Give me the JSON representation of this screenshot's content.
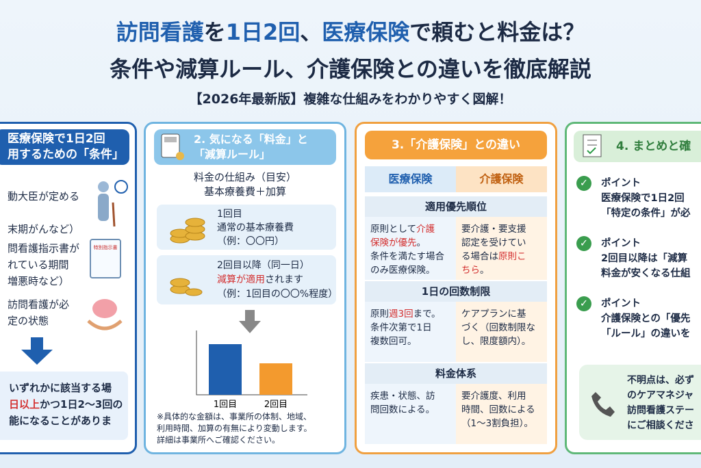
{
  "header": {
    "title_line1": [
      {
        "text": "訪問看護",
        "color": "#1f5fae"
      },
      "を",
      {
        "text": "1日2回",
        "color": "#1f5fae"
      },
      "、",
      {
        "text": "医療保険",
        "color": "#1f5fae"
      },
      "で頼むと料金は？"
    ],
    "title_line2": "条件や減算ルール、介護保険との違いを徹底解説",
    "subtitle": "【2026年最新版】複雑な仕組みをわかりやすく図解！"
  },
  "panel1": {
    "heading": [
      "医療保険で1日2回",
      "用するための「条件」"
    ],
    "item1": [
      "動大臣が定める",
      "末期がんなど）"
    ],
    "item2": [
      "問看護指示書が",
      "れている期間",
      "増悪時など）"
    ],
    "icon_label": "特別指示書",
    "item3": [
      "訪問看護が必",
      "定の状態"
    ],
    "conclusion": [
      "いずれかに該当する場",
      [
        {
          "text": "日以上",
          "color": "#d32f2f"
        },
        "かつ1日2〜3回の"
      ],
      "能になることがありま"
    ]
  },
  "panel2": {
    "heading": [
      "2. 気になる「料金」と",
      "「減算ルール」"
    ],
    "intro": [
      "料金の仕組み（目安）",
      "基本療養費＋加算"
    ],
    "box1": [
      "1回目",
      "通常の基本療養費",
      "（例：〇〇円）"
    ],
    "box2": [
      "2回目以降（同一日）",
      [
        {
          "text": "減算が適用",
          "color": "#d32f2f"
        },
        "されます"
      ],
      "（例：1回目の〇〇%程度）"
    ],
    "chart": {
      "type": "bar",
      "categories": [
        "1回目",
        "2回目"
      ],
      "values": [
        74,
        46
      ],
      "colors": [
        "#1f5fae",
        "#f39a2e"
      ],
      "ylim": [
        0,
        80
      ]
    },
    "note": [
      "※具体的な金額は、事業所の体制、地域、",
      "利用時間、加算の有無により変動します。",
      "詳細は事業所へご確認ください。"
    ]
  },
  "panel3": {
    "heading": "3.「介護保険」との違い",
    "col_left": "医療保険",
    "col_right": "介護保険",
    "sections": [
      {
        "title": "適用優先順位",
        "left": [
          [
            "原則として",
            {
              "text": "介護",
              "color": "#d32f2f"
            }
          ],
          [
            {
              "text": "保険が優先",
              "color": "#d32f2f"
            },
            "。"
          ],
          "条件を満たす場合",
          "のみ医療保険。"
        ],
        "right": [
          "要介護・要支援",
          "認定を受けてい",
          [
            "る場合は",
            {
              "text": "原則こ",
              "color": "#d32f2f"
            }
          ],
          [
            {
              "text": "ちら",
              "color": "#d32f2f"
            },
            "。"
          ]
        ]
      },
      {
        "title": "1日の回数制限",
        "left": [
          [
            "原則",
            {
              "text": "週3回",
              "color": "#d32f2f"
            },
            "まで。"
          ],
          "条件次第で1日",
          "複数回可。"
        ],
        "right": [
          "ケアプランに基",
          "づく（回数制限な",
          "し、限度額内）。"
        ]
      },
      {
        "title": "料金体系",
        "left": [
          "疾患・状態、訪",
          "問回数による。"
        ],
        "right": [
          "要介護度、利用",
          "時間、回数による",
          "（1〜3割負担）。"
        ]
      }
    ]
  },
  "panel4": {
    "heading": "4. まとめと確",
    "points": [
      {
        "label": "ポイント",
        "lines": [
          "医療保険で1日2回",
          "「特定の条件」が必"
        ]
      },
      {
        "label": "ポイント",
        "lines": [
          "2回目以降は「減算",
          "料金が安くなる仕組"
        ]
      },
      {
        "label": "ポイント",
        "lines": [
          "介護保険との「優先",
          "「ルール」の違いを"
        ]
      }
    ],
    "contact": [
      "不明点は、必ず",
      "のケアマネジャ",
      "訪問看護ステー",
      "にご相談くださ"
    ]
  }
}
